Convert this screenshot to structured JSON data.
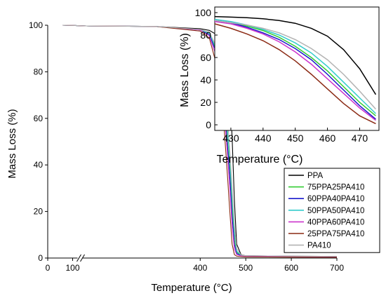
{
  "chart_data": [
    {
      "type": "line",
      "xlabel": "Temperature (°C)",
      "ylabel": "Mass Loss (%)",
      "x_axis_break": [
        100,
        150
      ],
      "x_ticks": [
        0,
        100,
        400,
        500,
        600,
        700
      ],
      "y_ticks": [
        0,
        20,
        40,
        60,
        80,
        100
      ],
      "xlim": [
        0,
        700
      ],
      "ylim": [
        0,
        100
      ],
      "grid": false,
      "legend_position": "bottom-right",
      "series": [
        {
          "name": "PPA",
          "color": "#000000",
          "x": [
            60,
            100,
            150,
            300,
            400,
            420,
            440,
            450,
            460,
            465,
            470,
            475,
            480,
            490,
            500,
            600,
            700
          ],
          "y": [
            100,
            99.9,
            99.7,
            99.5,
            98.5,
            97.8,
            95.5,
            93.5,
            85,
            72,
            52,
            25,
            6,
            1.3,
            1.0,
            0.8,
            0.7
          ]
        },
        {
          "name": "75PPA25PA410",
          "color": "#33cc33",
          "x": [
            60,
            100,
            150,
            300,
            400,
            420,
            440,
            450,
            460,
            465,
            470,
            475,
            480,
            490,
            500,
            600,
            700
          ],
          "y": [
            100,
            99.9,
            99.7,
            99.5,
            98,
            96.5,
            87,
            75,
            50,
            38,
            22,
            8,
            2.5,
            1.0,
            0.9,
            0.7,
            0.6
          ]
        },
        {
          "name": "60PPA40PA410",
          "color": "#1a1acc",
          "x": [
            60,
            100,
            150,
            300,
            400,
            420,
            440,
            450,
            460,
            465,
            470,
            475,
            480,
            490,
            500,
            600,
            700
          ],
          "y": [
            100,
            99.9,
            99.7,
            99.5,
            98,
            96,
            86,
            73,
            48,
            35,
            18,
            6,
            2,
            1.0,
            0.9,
            0.7,
            0.6
          ]
        },
        {
          "name": "50PPA50PA410",
          "color": "#33cccc",
          "x": [
            60,
            100,
            150,
            300,
            400,
            420,
            440,
            450,
            460,
            465,
            470,
            475,
            480,
            490,
            500,
            600,
            700
          ],
          "y": [
            100,
            99.9,
            99.7,
            99.5,
            98,
            96.5,
            88,
            77,
            55,
            42,
            26,
            11,
            3,
            1.1,
            0.9,
            0.7,
            0.6
          ]
        },
        {
          "name": "40PPA60PA410",
          "color": "#cc33cc",
          "x": [
            60,
            100,
            150,
            300,
            400,
            420,
            440,
            450,
            460,
            465,
            470,
            475,
            480,
            490,
            500,
            600,
            700
          ],
          "y": [
            100,
            99.9,
            99.7,
            99.5,
            98,
            95.5,
            84,
            70,
            44,
            30,
            14,
            4,
            1.5,
            0.9,
            0.8,
            0.6,
            0.5
          ]
        },
        {
          "name": "25PPA75PA410",
          "color": "#8b2a14",
          "x": [
            60,
            100,
            150,
            300,
            400,
            420,
            440,
            450,
            460,
            465,
            470,
            475,
            480,
            490,
            500,
            600,
            700
          ],
          "y": [
            100,
            99.9,
            99.7,
            99.5,
            97.5,
            94.5,
            80,
            63,
            35,
            20,
            6,
            1.5,
            0.8,
            0.6,
            0.5,
            0.4,
            0.3
          ]
        },
        {
          "name": "PA410",
          "color": "#b3b3b3",
          "x": [
            60,
            100,
            150,
            300,
            400,
            420,
            440,
            450,
            460,
            465,
            470,
            475,
            480,
            490,
            500,
            600,
            700
          ],
          "y": [
            100,
            99.9,
            99.7,
            99.5,
            98.2,
            97,
            89,
            80,
            60,
            46,
            30,
            14,
            4,
            1.2,
            1.0,
            0.8,
            0.7
          ]
        }
      ]
    },
    {
      "type": "line",
      "xlabel": "Temperature (°C)",
      "ylabel": "Mass Loss (%)",
      "xlim": [
        425,
        476
      ],
      "ylim": [
        -5,
        105
      ],
      "x_ticks": [
        430,
        440,
        450,
        460,
        470
      ],
      "y_ticks": [
        0,
        20,
        40,
        60,
        80,
        100
      ],
      "grid": false,
      "series": [
        {
          "name": "PPA",
          "color": "#000000",
          "x": [
            425,
            430,
            435,
            440,
            445,
            450,
            455,
            460,
            465,
            470,
            475
          ],
          "y": [
            96.5,
            96,
            95.5,
            94.5,
            93,
            90.5,
            86,
            79,
            67,
            50,
            27
          ]
        },
        {
          "name": "75PPA25PA410",
          "color": "#33cc33",
          "x": [
            425,
            430,
            435,
            440,
            445,
            450,
            455,
            460,
            465,
            470,
            475
          ],
          "y": [
            93,
            91,
            88,
            84,
            78,
            70,
            60,
            48,
            34,
            20,
            8
          ]
        },
        {
          "name": "60PPA40PA410",
          "color": "#1a1acc",
          "x": [
            425,
            430,
            435,
            440,
            445,
            450,
            455,
            460,
            465,
            470,
            475
          ],
          "y": [
            93,
            91,
            87,
            82,
            76,
            68,
            58,
            45,
            31,
            17,
            5
          ]
        },
        {
          "name": "50PPA50PA410",
          "color": "#33cccc",
          "x": [
            425,
            430,
            435,
            440,
            445,
            450,
            455,
            460,
            465,
            470,
            475
          ],
          "y": [
            94,
            92,
            89,
            85,
            80,
            73,
            64,
            52,
            38,
            24,
            10
          ]
        },
        {
          "name": "40PPA60PA410",
          "color": "#cc33cc",
          "x": [
            425,
            430,
            435,
            440,
            445,
            450,
            455,
            460,
            465,
            470,
            475
          ],
          "y": [
            92,
            90,
            86,
            81,
            74,
            65,
            54,
            41,
            28,
            15,
            4
          ]
        },
        {
          "name": "25PPA75PA410",
          "color": "#8b2a14",
          "x": [
            425,
            430,
            435,
            440,
            445,
            450,
            455,
            460,
            465,
            470,
            475
          ],
          "y": [
            90,
            86,
            81,
            75,
            67,
            57,
            45,
            32,
            19,
            8,
            1
          ]
        },
        {
          "name": "PA410",
          "color": "#b3b3b3",
          "x": [
            425,
            430,
            435,
            440,
            445,
            450,
            455,
            460,
            465,
            470,
            475
          ],
          "y": [
            93,
            91,
            89,
            86,
            82,
            76,
            68,
            58,
            45,
            30,
            14
          ]
        }
      ]
    }
  ]
}
